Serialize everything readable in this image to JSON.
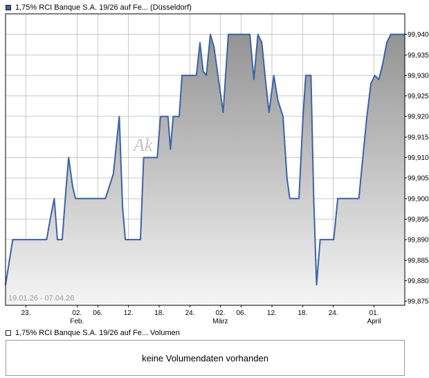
{
  "header": {
    "legend_label": "1,75% RCI Banque S.A. 19/26 auf Fe... (Düsseldorf)"
  },
  "volume": {
    "legend_label": "1,75% RCI Banque S.A. 19/26 auf Fe... Volumen",
    "message": "keine Volumendaten vorhanden"
  },
  "chart_data": {
    "type": "area",
    "title": "1,75% RCI Banque S.A. 19/26 auf Fe... (Düsseldorf)",
    "xlabel": "",
    "ylabel": "",
    "date_range_label": "19.01.26 - 07.04.26",
    "watermark": "Ak",
    "legend_position": "top-left",
    "grid": true,
    "ylim": [
      99.874,
      99.945
    ],
    "y_ticks": [
      {
        "v": 99.94,
        "label": "99,940"
      },
      {
        "v": 99.935,
        "label": "99,935"
      },
      {
        "v": 99.93,
        "label": "99,930"
      },
      {
        "v": 99.925,
        "label": "99,925"
      },
      {
        "v": 99.92,
        "label": "99,920"
      },
      {
        "v": 99.915,
        "label": "99,915"
      },
      {
        "v": 99.91,
        "label": "99,910"
      },
      {
        "v": 99.905,
        "label": "99,905"
      },
      {
        "v": 99.9,
        "label": "99,900"
      },
      {
        "v": 99.895,
        "label": "99,895"
      },
      {
        "v": 99.89,
        "label": "99,890"
      },
      {
        "v": 99.885,
        "label": "99,885"
      },
      {
        "v": 99.88,
        "label": "99,880"
      },
      {
        "v": 99.875,
        "label": "99,875"
      }
    ],
    "x_ticks": [
      {
        "t": 0.051,
        "label": "23."
      },
      {
        "t": 0.179,
        "label": "02.",
        "sub": "Feb."
      },
      {
        "t": 0.231,
        "label": "06."
      },
      {
        "t": 0.308,
        "label": "12."
      },
      {
        "t": 0.385,
        "label": "18."
      },
      {
        "t": 0.462,
        "label": "24."
      },
      {
        "t": 0.538,
        "label": "02.",
        "sub": "März"
      },
      {
        "t": 0.59,
        "label": "06."
      },
      {
        "t": 0.667,
        "label": "12."
      },
      {
        "t": 0.744,
        "label": "18."
      },
      {
        "t": 0.821,
        "label": "24."
      },
      {
        "t": 0.923,
        "label": "01.",
        "sub": "April"
      }
    ],
    "series": [
      {
        "name": "1,75% RCI Banque S.A. 19/26 auf Fe...",
        "points": [
          [
            0.0,
            99.879
          ],
          [
            0.018,
            99.89
          ],
          [
            0.103,
            99.89
          ],
          [
            0.112,
            99.895
          ],
          [
            0.122,
            99.9
          ],
          [
            0.13,
            99.89
          ],
          [
            0.142,
            99.89
          ],
          [
            0.152,
            99.903
          ],
          [
            0.158,
            99.91
          ],
          [
            0.168,
            99.903
          ],
          [
            0.175,
            99.9
          ],
          [
            0.25,
            99.9
          ],
          [
            0.27,
            99.906
          ],
          [
            0.285,
            99.92
          ],
          [
            0.293,
            99.898
          ],
          [
            0.3,
            99.89
          ],
          [
            0.338,
            99.89
          ],
          [
            0.346,
            99.91
          ],
          [
            0.38,
            99.91
          ],
          [
            0.388,
            99.92
          ],
          [
            0.407,
            99.92
          ],
          [
            0.413,
            99.912
          ],
          [
            0.42,
            99.92
          ],
          [
            0.435,
            99.92
          ],
          [
            0.442,
            99.93
          ],
          [
            0.478,
            99.93
          ],
          [
            0.487,
            99.938
          ],
          [
            0.495,
            99.931
          ],
          [
            0.503,
            99.93
          ],
          [
            0.513,
            99.94
          ],
          [
            0.522,
            99.937
          ],
          [
            0.532,
            99.93
          ],
          [
            0.545,
            99.921
          ],
          [
            0.558,
            99.94
          ],
          [
            0.612,
            99.94
          ],
          [
            0.622,
            99.929
          ],
          [
            0.632,
            99.94
          ],
          [
            0.642,
            99.938
          ],
          [
            0.652,
            99.928
          ],
          [
            0.66,
            99.921
          ],
          [
            0.672,
            99.93
          ],
          [
            0.682,
            99.924
          ],
          [
            0.695,
            99.92
          ],
          [
            0.705,
            99.905
          ],
          [
            0.712,
            99.9
          ],
          [
            0.735,
            99.9
          ],
          [
            0.745,
            99.92
          ],
          [
            0.752,
            99.93
          ],
          [
            0.765,
            99.93
          ],
          [
            0.772,
            99.9
          ],
          [
            0.779,
            99.879
          ],
          [
            0.788,
            99.89
          ],
          [
            0.822,
            99.89
          ],
          [
            0.832,
            99.9
          ],
          [
            0.885,
            99.9
          ],
          [
            0.895,
            99.91
          ],
          [
            0.905,
            99.92
          ],
          [
            0.915,
            99.928
          ],
          [
            0.925,
            99.93
          ],
          [
            0.935,
            99.929
          ],
          [
            0.945,
            99.933
          ],
          [
            0.955,
            99.938
          ],
          [
            0.965,
            99.94
          ],
          [
            1.0,
            99.94
          ]
        ]
      }
    ],
    "colors": {
      "line": "#3a62a8",
      "area_top": "#8c8c8c",
      "area_bottom": "#f5f5f5",
      "grid": "#c8c8c8",
      "border": "#000000",
      "range_text": "#9a9a9a",
      "watermark": "#c4c4c4",
      "tick_text": "#000000"
    }
  }
}
